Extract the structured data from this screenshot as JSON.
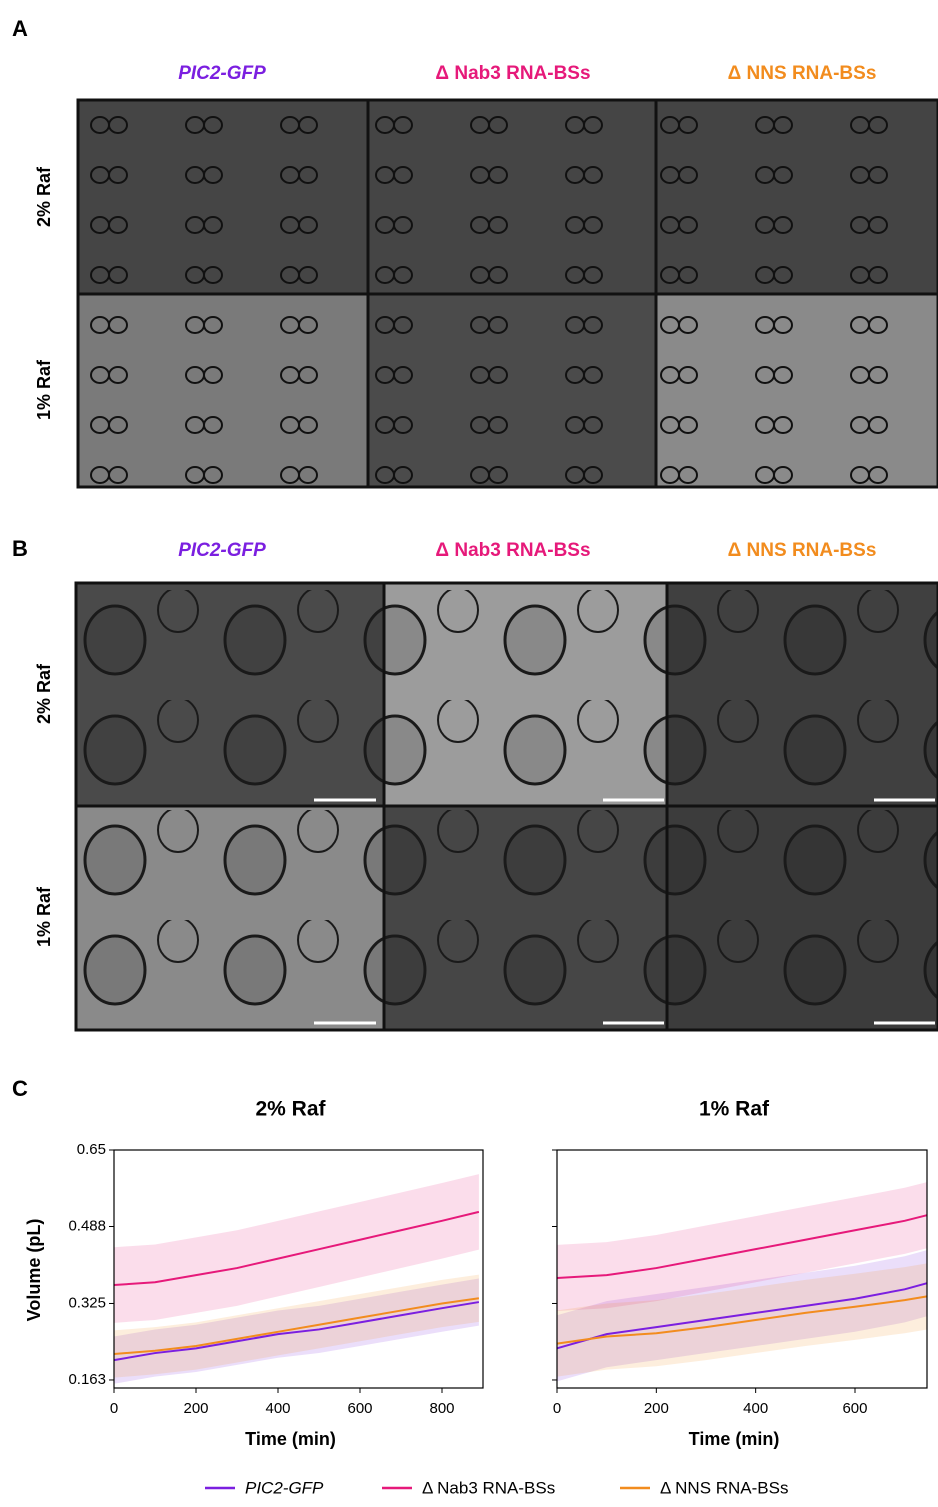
{
  "panels": {
    "a": {
      "label": "A",
      "headers": [
        "PIC2-GFP",
        "Δ Nab3 RNA-BSs",
        "Δ NNS RNA-BSs"
      ],
      "rows": [
        "2% Raf",
        "1% Raf"
      ]
    },
    "b": {
      "label": "B",
      "headers": [
        "PIC2-GFP",
        "Δ Nab3 RNA-BSs",
        "Δ NNS RNA-BSs"
      ],
      "rows": [
        "2% Raf",
        "1% Raf"
      ]
    },
    "c": {
      "label": "C",
      "ylabel": "Volume (pL)"
    }
  },
  "chart_data": [
    {
      "type": "line",
      "title": "2% Raf",
      "xlabel": "Time (min)",
      "x": [
        0,
        100,
        200,
        300,
        400,
        500,
        600,
        700,
        800,
        890
      ],
      "xlim": [
        0,
        900
      ],
      "xticks": [
        0,
        200,
        400,
        600,
        800
      ],
      "ylim": [
        0.146,
        0.65
      ],
      "yticks": [
        0.163,
        0.325,
        0.488,
        0.65
      ],
      "series": [
        {
          "name": "PIC2-GFP",
          "color": "#7b1fe0",
          "values": [
            0.205,
            0.22,
            0.23,
            0.245,
            0.26,
            0.27,
            0.285,
            0.3,
            0.315,
            0.328
          ],
          "lower": [
            0.155,
            0.17,
            0.18,
            0.195,
            0.21,
            0.22,
            0.235,
            0.25,
            0.265,
            0.278
          ],
          "upper": [
            0.255,
            0.27,
            0.28,
            0.295,
            0.31,
            0.32,
            0.335,
            0.35,
            0.365,
            0.378
          ]
        },
        {
          "name": "Δ Nab3 RNA-BSs",
          "color": "#e6197a",
          "values": [
            0.364,
            0.37,
            0.385,
            0.4,
            0.42,
            0.44,
            0.46,
            0.48,
            0.5,
            0.519
          ],
          "lower": [
            0.284,
            0.29,
            0.305,
            0.32,
            0.34,
            0.36,
            0.38,
            0.4,
            0.42,
            0.439
          ],
          "upper": [
            0.444,
            0.45,
            0.465,
            0.48,
            0.5,
            0.52,
            0.54,
            0.56,
            0.58,
            0.599
          ]
        },
        {
          "name": "Δ NNS RNA-BSs",
          "color": "#f28c1e",
          "values": [
            0.218,
            0.225,
            0.235,
            0.25,
            0.265,
            0.28,
            0.295,
            0.31,
            0.325,
            0.336
          ],
          "lower": [
            0.168,
            0.175,
            0.185,
            0.2,
            0.215,
            0.23,
            0.245,
            0.26,
            0.275,
            0.286
          ],
          "upper": [
            0.268,
            0.275,
            0.285,
            0.3,
            0.315,
            0.33,
            0.345,
            0.36,
            0.375,
            0.386
          ]
        }
      ]
    },
    {
      "type": "line",
      "title": "1% Raf",
      "xlabel": "Time (min)",
      "x": [
        0,
        100,
        200,
        300,
        400,
        500,
        600,
        700,
        745
      ],
      "xlim": [
        0,
        745
      ],
      "xticks": [
        0,
        200,
        400,
        600
      ],
      "ylim": [
        0.146,
        0.65
      ],
      "yticks": [
        0.163,
        0.325,
        0.488,
        0.65
      ],
      "series": [
        {
          "color": "#7b1fe0",
          "values": [
            0.23,
            0.26,
            0.275,
            0.29,
            0.305,
            0.32,
            0.335,
            0.355,
            0.368
          ],
          "lower": [
            0.16,
            0.19,
            0.205,
            0.22,
            0.235,
            0.25,
            0.265,
            0.285,
            0.298
          ],
          "upper": [
            0.3,
            0.33,
            0.345,
            0.36,
            0.375,
            0.39,
            0.405,
            0.425,
            0.438
          ]
        },
        {
          "color": "#e6197a",
          "values": [
            0.379,
            0.385,
            0.4,
            0.42,
            0.44,
            0.46,
            0.48,
            0.5,
            0.512
          ],
          "lower": [
            0.309,
            0.315,
            0.33,
            0.35,
            0.37,
            0.39,
            0.41,
            0.43,
            0.442
          ],
          "upper": [
            0.449,
            0.455,
            0.47,
            0.49,
            0.51,
            0.53,
            0.55,
            0.57,
            0.582
          ]
        },
        {
          "color": "#f28c1e",
          "values": [
            0.24,
            0.255,
            0.262,
            0.275,
            0.29,
            0.305,
            0.318,
            0.332,
            0.34
          ],
          "lower": [
            0.17,
            0.185,
            0.192,
            0.205,
            0.22,
            0.235,
            0.248,
            0.262,
            0.27
          ],
          "upper": [
            0.31,
            0.325,
            0.332,
            0.345,
            0.36,
            0.375,
            0.388,
            0.402,
            0.41
          ]
        }
      ]
    }
  ]
}
